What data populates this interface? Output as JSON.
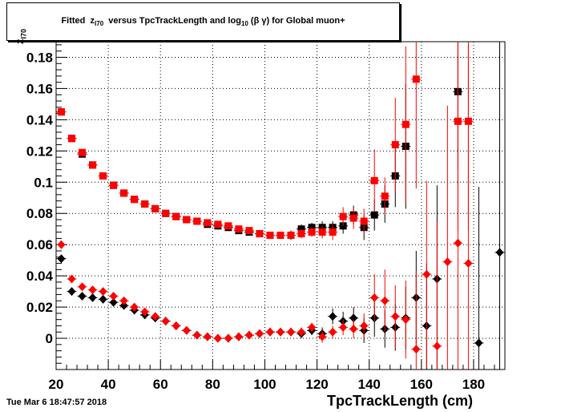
{
  "title": {
    "prefix": "Fitted",
    "z_main": "z",
    "z_sub": "I70",
    "middle": "versus TpcTrackLength and log",
    "log_sub": "10",
    "suffix": "(β γ) for Global muon+"
  },
  "footer": {
    "timestamp": "Tue Mar  6 18:47:57 2018"
  },
  "chart_data": {
    "type": "scatter",
    "xlabel": "TpcTrackLength (cm)",
    "ylabel": "z",
    "ylabel_sub": "I70",
    "xlim": [
      20,
      192
    ],
    "ylim": [
      -0.02,
      0.19
    ],
    "x_ticks": [
      20,
      40,
      60,
      80,
      100,
      120,
      140,
      160,
      180
    ],
    "y_ticks": [
      0,
      0.02,
      0.04,
      0.06,
      0.08,
      0.1,
      0.12,
      0.14,
      0.16,
      0.18
    ],
    "y_tick_labels": [
      "0",
      "0.02",
      "0.04",
      "0.06",
      "0.08",
      "0.1",
      "0.12",
      "0.14",
      "0.16",
      "0.18"
    ],
    "grid": true,
    "colors": {
      "black": "#000000",
      "red": "#ff0000"
    },
    "series": [
      {
        "marker": "square",
        "color": "#000000",
        "points": [
          [
            22,
            0.145,
            0
          ],
          [
            26,
            0.128,
            0
          ],
          [
            30,
            0.118,
            0
          ],
          [
            34,
            0.111,
            0
          ],
          [
            38,
            0.104,
            0
          ],
          [
            42,
            0.098,
            0
          ],
          [
            46,
            0.093,
            0
          ],
          [
            50,
            0.089,
            0
          ],
          [
            54,
            0.086,
            0
          ],
          [
            58,
            0.083,
            0
          ],
          [
            62,
            0.08,
            0
          ],
          [
            66,
            0.078,
            0
          ],
          [
            70,
            0.076,
            0
          ],
          [
            74,
            0.075,
            0
          ],
          [
            78,
            0.073,
            0
          ],
          [
            82,
            0.072,
            0
          ],
          [
            86,
            0.071,
            0
          ],
          [
            90,
            0.069,
            0
          ],
          [
            94,
            0.068,
            0
          ],
          [
            98,
            0.067,
            0
          ],
          [
            102,
            0.066,
            0
          ],
          [
            106,
            0.066,
            0
          ],
          [
            110,
            0.066,
            0.003
          ],
          [
            114,
            0.07,
            0.003
          ],
          [
            118,
            0.071,
            0.003
          ],
          [
            122,
            0.071,
            0.004
          ],
          [
            126,
            0.071,
            0.004
          ],
          [
            130,
            0.072,
            0.005
          ],
          [
            134,
            0.079,
            0.006
          ],
          [
            138,
            0.071,
            0.008
          ],
          [
            142,
            0.079,
            0.01
          ],
          [
            146,
            0.086,
            0.012
          ],
          [
            150,
            0.104,
            0.02
          ],
          [
            154,
            0.123,
            0.04
          ],
          [
            174,
            0.158,
            0.05
          ]
        ]
      },
      {
        "marker": "square",
        "color": "#ff0000",
        "points": [
          [
            22,
            0.145,
            0
          ],
          [
            26,
            0.128,
            0
          ],
          [
            30,
            0.119,
            0
          ],
          [
            34,
            0.111,
            0
          ],
          [
            38,
            0.104,
            0
          ],
          [
            42,
            0.098,
            0
          ],
          [
            46,
            0.093,
            0
          ],
          [
            50,
            0.089,
            0
          ],
          [
            54,
            0.086,
            0
          ],
          [
            58,
            0.083,
            0
          ],
          [
            62,
            0.08,
            0
          ],
          [
            66,
            0.078,
            0
          ],
          [
            70,
            0.076,
            0
          ],
          [
            74,
            0.075,
            0
          ],
          [
            78,
            0.074,
            0
          ],
          [
            82,
            0.073,
            0
          ],
          [
            86,
            0.072,
            0
          ],
          [
            90,
            0.07,
            0
          ],
          [
            94,
            0.069,
            0
          ],
          [
            98,
            0.067,
            0
          ],
          [
            102,
            0.066,
            0
          ],
          [
            106,
            0.066,
            0
          ],
          [
            110,
            0.066,
            0.002
          ],
          [
            114,
            0.067,
            0.003
          ],
          [
            118,
            0.068,
            0.003
          ],
          [
            122,
            0.068,
            0.004
          ],
          [
            126,
            0.068,
            0.005
          ],
          [
            130,
            0.078,
            0.006
          ],
          [
            134,
            0.077,
            0.007
          ],
          [
            138,
            0.075,
            0.008
          ],
          [
            142,
            0.101,
            0.02
          ],
          [
            146,
            0.091,
            0.012
          ],
          [
            150,
            0.124,
            0.03
          ],
          [
            154,
            0.137,
            0.05
          ],
          [
            158,
            0.166,
            0.07
          ],
          [
            174,
            0.139,
            0.07
          ],
          [
            178,
            0.139,
            0.07
          ]
        ]
      },
      {
        "marker": "diamond",
        "color": "#000000",
        "points": [
          [
            22,
            0.051,
            0
          ],
          [
            26,
            0.03,
            0
          ],
          [
            30,
            0.027,
            0
          ],
          [
            34,
            0.026,
            0
          ],
          [
            38,
            0.025,
            0
          ],
          [
            42,
            0.023,
            0
          ],
          [
            46,
            0.021,
            0
          ],
          [
            50,
            0.018,
            0
          ],
          [
            54,
            0.015,
            0
          ],
          [
            58,
            0.013,
            0
          ],
          [
            62,
            0.011,
            0
          ],
          [
            66,
            0.008,
            0
          ],
          [
            70,
            0.005,
            0
          ],
          [
            74,
            0.002,
            0
          ],
          [
            78,
            0.001,
            0
          ],
          [
            82,
            0.0,
            0
          ],
          [
            86,
            0.0,
            0
          ],
          [
            90,
            0.001,
            0
          ],
          [
            94,
            0.002,
            0
          ],
          [
            98,
            0.003,
            0
          ],
          [
            102,
            0.004,
            0
          ],
          [
            106,
            0.004,
            0
          ],
          [
            110,
            0.004,
            0.002
          ],
          [
            114,
            0.003,
            0.003
          ],
          [
            118,
            0.005,
            0.003
          ],
          [
            122,
            0.003,
            0.004
          ],
          [
            126,
            0.014,
            0.005
          ],
          [
            130,
            0.011,
            0.006
          ],
          [
            134,
            0.013,
            0.007
          ],
          [
            138,
            0.005,
            0.008
          ],
          [
            142,
            0.013,
            0.012
          ],
          [
            146,
            0.006,
            0.012
          ],
          [
            150,
            0.007,
            0.015
          ],
          [
            154,
            0.013,
            0.02
          ],
          [
            158,
            0.026,
            0.03
          ],
          [
            162,
            0.008,
            0.04
          ],
          [
            166,
            0.038,
            0.06
          ],
          [
            182,
            -0.003,
            0.1
          ],
          [
            190,
            0.055,
            0.15
          ]
        ]
      },
      {
        "marker": "diamond",
        "color": "#ff0000",
        "points": [
          [
            22,
            0.06,
            0
          ],
          [
            26,
            0.038,
            0
          ],
          [
            30,
            0.033,
            0
          ],
          [
            34,
            0.031,
            0
          ],
          [
            38,
            0.03,
            0
          ],
          [
            42,
            0.027,
            0
          ],
          [
            46,
            0.024,
            0
          ],
          [
            50,
            0.02,
            0
          ],
          [
            54,
            0.017,
            0
          ],
          [
            58,
            0.014,
            0
          ],
          [
            62,
            0.011,
            0
          ],
          [
            66,
            0.008,
            0
          ],
          [
            70,
            0.005,
            0
          ],
          [
            74,
            0.002,
            0
          ],
          [
            78,
            0.001,
            0
          ],
          [
            82,
            0.0,
            0
          ],
          [
            86,
            0.0,
            0
          ],
          [
            90,
            0.001,
            0
          ],
          [
            94,
            0.002,
            0
          ],
          [
            98,
            0.003,
            0
          ],
          [
            102,
            0.004,
            0
          ],
          [
            106,
            0.004,
            0
          ],
          [
            110,
            0.004,
            0.002
          ],
          [
            114,
            0.004,
            0.003
          ],
          [
            118,
            0.007,
            0.003
          ],
          [
            122,
            0.001,
            0.004
          ],
          [
            126,
            0.004,
            0.004
          ],
          [
            130,
            0.007,
            0.005
          ],
          [
            134,
            0.006,
            0.006
          ],
          [
            138,
            0.008,
            0.008
          ],
          [
            142,
            0.026,
            0.015
          ],
          [
            146,
            0.024,
            0.02
          ],
          [
            150,
            0.014,
            0.02
          ],
          [
            154,
            0.012,
            0.025
          ],
          [
            158,
            -0.007,
            0.05
          ],
          [
            162,
            0.041,
            0.06
          ],
          [
            166,
            -0.005,
            0.08
          ],
          [
            170,
            0.049,
            0.1
          ],
          [
            174,
            0.061,
            0.12
          ],
          [
            178,
            0.048,
            0.14
          ]
        ]
      }
    ]
  }
}
